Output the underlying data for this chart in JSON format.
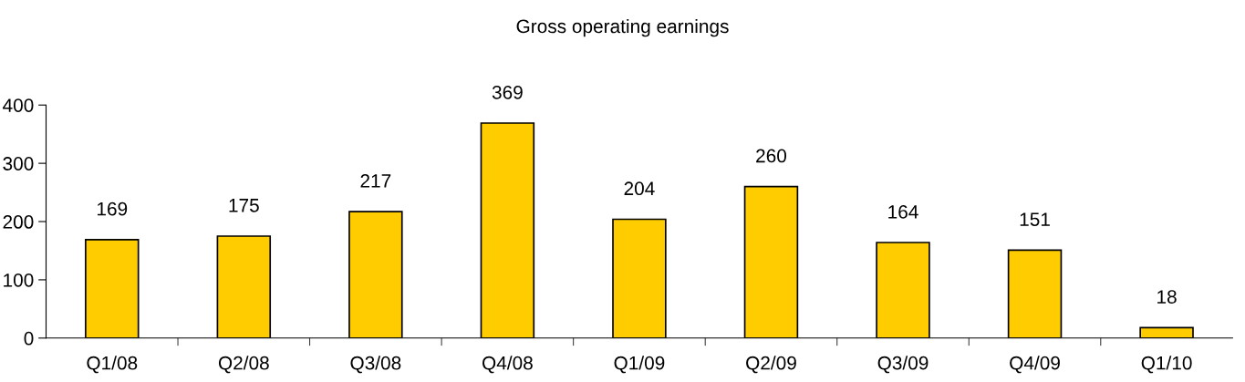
{
  "chart_data": {
    "type": "bar",
    "title": "Gross operating earnings",
    "categories": [
      "Q1/08",
      "Q2/08",
      "Q3/08",
      "Q4/08",
      "Q1/09",
      "Q2/09",
      "Q3/09",
      "Q4/09",
      "Q1/10"
    ],
    "values": [
      169,
      175,
      217,
      369,
      204,
      260,
      164,
      151,
      18
    ],
    "color": "#ffcc00",
    "ylim": [
      0,
      400
    ],
    "yticks": [
      0,
      100,
      200,
      300,
      400
    ],
    "data_labels": true,
    "grid": false,
    "legend": false
  }
}
